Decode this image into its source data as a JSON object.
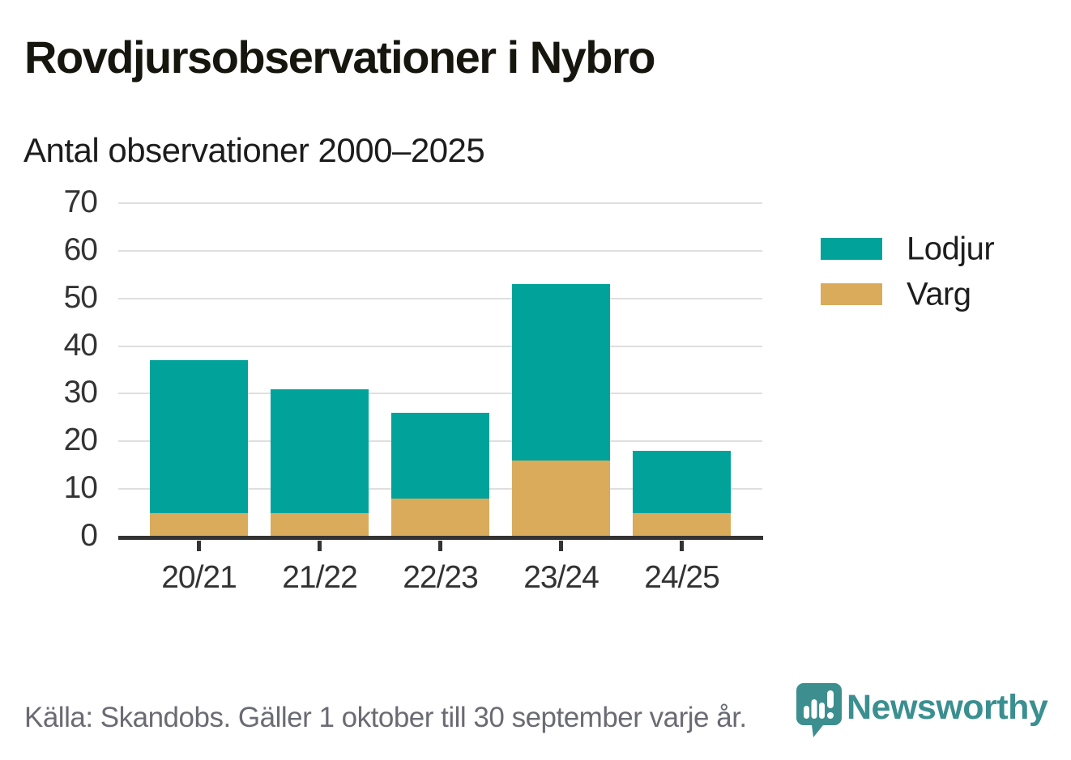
{
  "title": "Rovdjursobservationer i Nybro",
  "subtitle": "Antal observationer 2000–2025",
  "footer": {
    "source_note": "Källa: Skandobs. Gäller 1 oktober till 30 september varje år."
  },
  "branding": {
    "name": "Newsworthy",
    "logo_icon": "speech-bubble-bar-chart-icon",
    "color": "#3a8f90"
  },
  "colors": {
    "lodjur": "#00a29a",
    "varg": "#d9ab5b",
    "axis": "#333333",
    "grid": "#dfdfdf",
    "title_text": "#16160f",
    "muted_text": "#6b6b74"
  },
  "legend": [
    {
      "label": "Lodjur",
      "color": "#00a29a"
    },
    {
      "label": "Varg",
      "color": "#d9ab5b"
    }
  ],
  "chart_data": {
    "type": "bar",
    "stacked": true,
    "title": "Rovdjursobservationer i Nybro",
    "subtitle": "Antal observationer 2000–2025",
    "categories": [
      "20/21",
      "21/22",
      "22/23",
      "23/24",
      "24/25"
    ],
    "series": [
      {
        "name": "Varg",
        "color": "#d9ab5b",
        "values": [
          5,
          5,
          8,
          16,
          5
        ]
      },
      {
        "name": "Lodjur",
        "color": "#00a29a",
        "values": [
          32,
          26,
          18,
          37,
          13
        ]
      }
    ],
    "totals": [
      37,
      31,
      26,
      53,
      18
    ],
    "xlabel": "",
    "ylabel": "",
    "ylim": [
      0,
      70
    ],
    "yticks": [
      0,
      10,
      20,
      30,
      40,
      50,
      60,
      70
    ],
    "grid": true,
    "legend_position": "right"
  }
}
